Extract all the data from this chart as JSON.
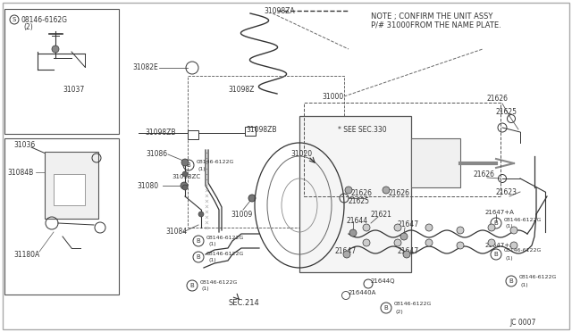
{
  "bg_color": "#ffffff",
  "line_color": "#333333",
  "text_color": "#333333",
  "diagram_id": "JC 0007",
  "note_line1": "NOTE ; CONFIRM THE UNIT ASSY",
  "note_line2": "P/# 31000FROM THE NAME PLATE."
}
